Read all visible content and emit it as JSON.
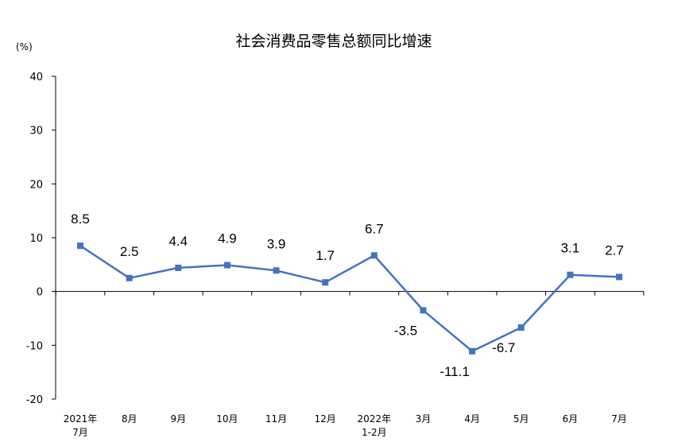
{
  "chart_data": {
    "type": "line",
    "title": "社会消费品零售总额同比增速",
    "y_unit": "(%)",
    "ylim": [
      -20,
      40
    ],
    "yticks": [
      "40",
      "30",
      "20",
      "10",
      "0",
      "-10",
      "-20"
    ],
    "categories": [
      [
        "2021年",
        "7月"
      ],
      [
        "8月"
      ],
      [
        "9月"
      ],
      [
        "10月"
      ],
      [
        "11月"
      ],
      [
        "12月"
      ],
      [
        "2022年",
        "1-2月"
      ],
      [
        "3月"
      ],
      [
        "4月"
      ],
      [
        "5月"
      ],
      [
        "6月"
      ],
      [
        "7月"
      ]
    ],
    "series": [
      {
        "values": [
          8.5,
          2.5,
          4.4,
          4.9,
          3.9,
          1.7,
          6.7,
          -3.5,
          -11.1,
          -6.7,
          3.1,
          2.7
        ],
        "data_labels": [
          "8.5",
          "2.5",
          "4.4",
          "4.9",
          "3.9",
          "1.7",
          "6.7",
          "-3.5",
          "-11.1",
          "-6.7",
          "3.1",
          "2.7"
        ],
        "color": "#4472c4"
      }
    ],
    "legend": "none",
    "grid": false
  }
}
